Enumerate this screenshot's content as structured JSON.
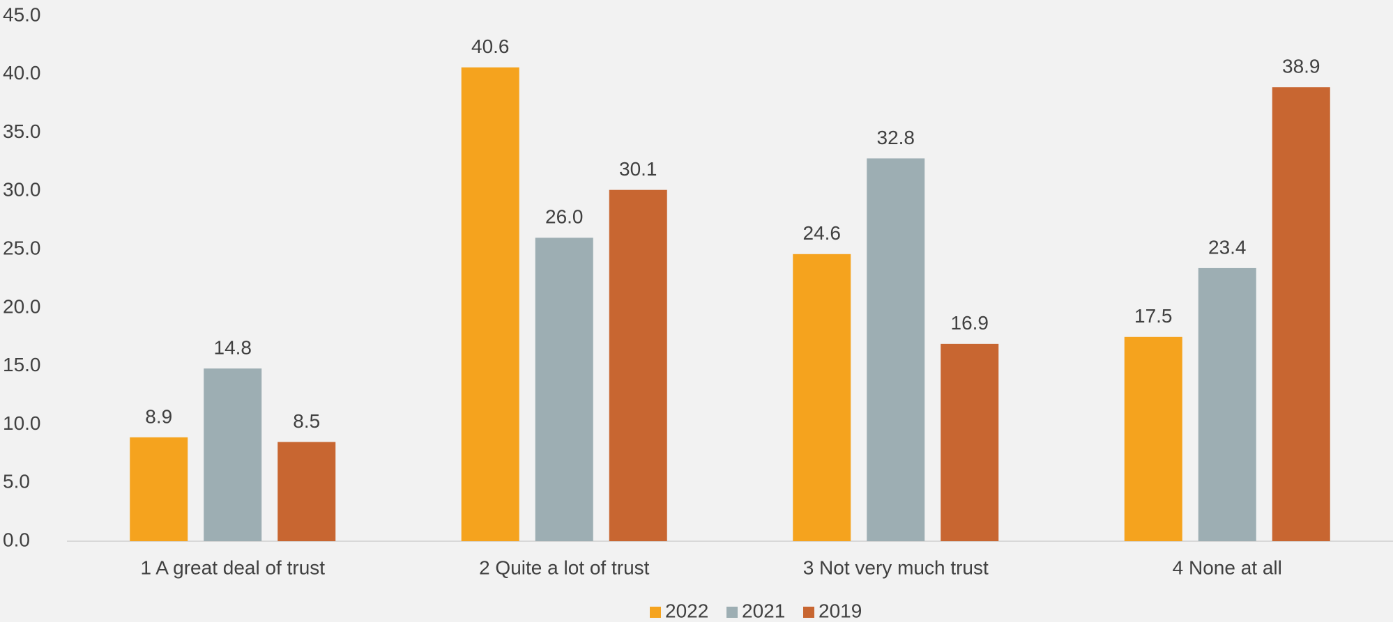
{
  "chart_data": {
    "type": "bar",
    "categories": [
      "1 A great deal of trust",
      "2 Quite a lot of trust",
      "3 Not very much trust",
      "4 None at all"
    ],
    "series": [
      {
        "name": "2022",
        "color": "#f5a31e",
        "values": [
          8.9,
          40.6,
          24.6,
          17.5
        ],
        "value_labels": [
          "8.9",
          "40.6",
          "24.6",
          "17.5"
        ]
      },
      {
        "name": "2021",
        "color": "#9daeb3",
        "values": [
          14.8,
          26.0,
          32.8,
          23.4
        ],
        "value_labels": [
          "14.8",
          "26.0",
          "32.8",
          "23.4"
        ]
      },
      {
        "name": "2019",
        "color": "#c86631",
        "values": [
          8.5,
          30.1,
          16.9,
          38.9
        ],
        "value_labels": [
          "8.5",
          "30.1",
          "16.9",
          "38.9"
        ]
      }
    ],
    "ylim": [
      0,
      45
    ],
    "yticks": [
      {
        "value": 0,
        "label": "0.0"
      },
      {
        "value": 5,
        "label": "5.0"
      },
      {
        "value": 10,
        "label": "10.0"
      },
      {
        "value": 15,
        "label": "15.0"
      },
      {
        "value": 20,
        "label": "20.0"
      },
      {
        "value": 25,
        "label": "25.0"
      },
      {
        "value": 30,
        "label": "30.0"
      },
      {
        "value": 35,
        "label": "35.0"
      },
      {
        "value": 40,
        "label": "40.0"
      },
      {
        "value": 45,
        "label": "45.0"
      }
    ],
    "grid": false,
    "legend": "bottom"
  }
}
